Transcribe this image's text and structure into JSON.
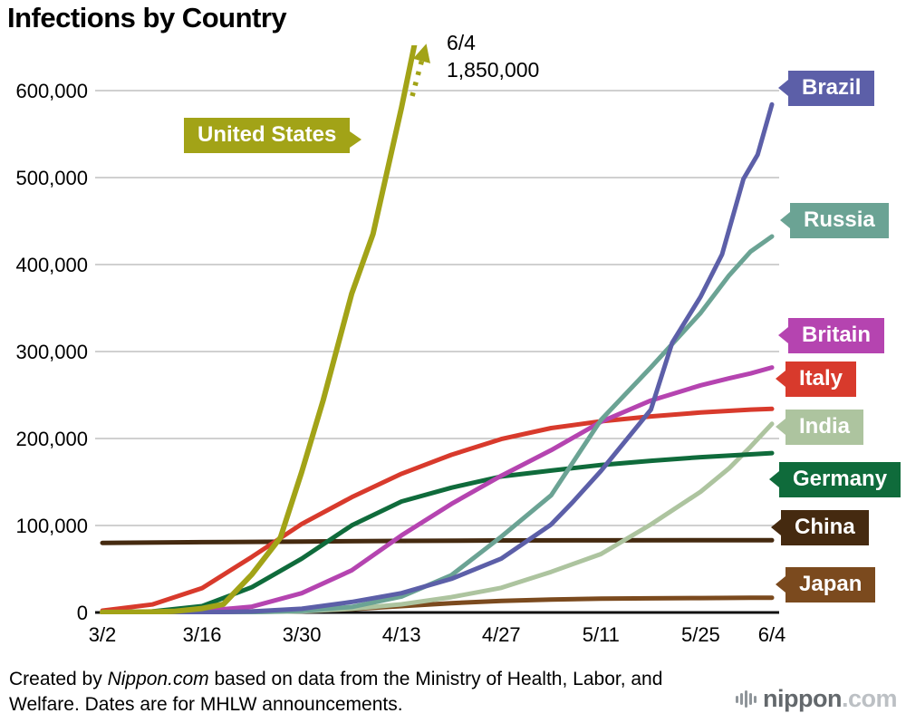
{
  "title": "Infections by Country",
  "annotation": {
    "date": "6/4",
    "value": "1,850,000"
  },
  "footer": {
    "prefix": "Created by ",
    "brand": "Nippon.com",
    "suffix": " based on data from the Ministry of Health, Labor, and Welfare. Dates are for MHLW announcements."
  },
  "logo": {
    "name": "nippon",
    "tld": ".com"
  },
  "chart_data": {
    "type": "line",
    "title": "Infections by Country",
    "x_axis": {
      "max_day": 94,
      "ticks": [
        {
          "label": "3/2",
          "day": 0
        },
        {
          "label": "3/16",
          "day": 14
        },
        {
          "label": "3/30",
          "day": 28
        },
        {
          "label": "4/13",
          "day": 42
        },
        {
          "label": "4/27",
          "day": 56
        },
        {
          "label": "5/11",
          "day": 70
        },
        {
          "label": "5/25",
          "day": 84
        },
        {
          "label": "6/4",
          "day": 94
        }
      ]
    },
    "y_axis": {
      "max": 600000,
      "ticks": [
        {
          "value": 0,
          "label": "0"
        },
        {
          "value": 100000,
          "label": "100,000"
        },
        {
          "value": 200000,
          "label": "200,000"
        },
        {
          "value": 300000,
          "label": "300,000"
        },
        {
          "value": 400000,
          "label": "400,000"
        },
        {
          "value": 500000,
          "label": "500,000"
        },
        {
          "value": 600000,
          "label": "600,000"
        }
      ]
    },
    "series": [
      {
        "name": "United States",
        "color": "#a2a317",
        "width": 6,
        "off_chart_end": {
          "date": "6/4",
          "value": 1850000
        },
        "points": [
          [
            0,
            100
          ],
          [
            4,
            220
          ],
          [
            7,
            605
          ],
          [
            10,
            1300
          ],
          [
            14,
            4632
          ],
          [
            17,
            9500
          ],
          [
            21,
            43847
          ],
          [
            25,
            86000
          ],
          [
            28,
            161807
          ],
          [
            31,
            244000
          ],
          [
            35,
            366614
          ],
          [
            38,
            435000
          ],
          [
            42,
            580619
          ],
          [
            44,
            660000
          ]
        ]
      },
      {
        "name": "Brazil",
        "color": "#5c5fa8",
        "width": 5,
        "points": [
          [
            0,
            2
          ],
          [
            14,
            121
          ],
          [
            21,
            1128
          ],
          [
            28,
            4256
          ],
          [
            35,
            12056
          ],
          [
            42,
            22169
          ],
          [
            49,
            38654
          ],
          [
            56,
            61888
          ],
          [
            63,
            101147
          ],
          [
            66,
            126611
          ],
          [
            70,
            162699
          ],
          [
            74,
            202918
          ],
          [
            77,
            233142
          ],
          [
            80,
            310087
          ],
          [
            84,
            363211
          ],
          [
            87,
            411821
          ],
          [
            90,
            498440
          ],
          [
            92,
            526447
          ],
          [
            94,
            584016
          ]
        ]
      },
      {
        "name": "Russia",
        "color": "#6ba394",
        "width": 5,
        "points": [
          [
            0,
            3
          ],
          [
            14,
            93
          ],
          [
            21,
            438
          ],
          [
            28,
            1836
          ],
          [
            35,
            6343
          ],
          [
            42,
            18328
          ],
          [
            49,
            42853
          ],
          [
            56,
            87147
          ],
          [
            63,
            134687
          ],
          [
            70,
            221344
          ],
          [
            77,
            281752
          ],
          [
            84,
            344481
          ],
          [
            88,
            387623
          ],
          [
            91,
            414878
          ],
          [
            94,
            432277
          ]
        ]
      },
      {
        "name": "Britain",
        "color": "#b544b0",
        "width": 5,
        "points": [
          [
            0,
            36
          ],
          [
            14,
            1543
          ],
          [
            21,
            6650
          ],
          [
            28,
            22141
          ],
          [
            35,
            48436
          ],
          [
            42,
            88621
          ],
          [
            49,
            124743
          ],
          [
            56,
            157149
          ],
          [
            63,
            186599
          ],
          [
            70,
            219183
          ],
          [
            77,
            243695
          ],
          [
            84,
            261184
          ],
          [
            88,
            269127
          ],
          [
            91,
            274762
          ],
          [
            94,
            281661
          ]
        ]
      },
      {
        "name": "Italy",
        "color": "#d83a2c",
        "width": 5,
        "points": [
          [
            0,
            2036
          ],
          [
            7,
            9172
          ],
          [
            14,
            27980
          ],
          [
            21,
            63927
          ],
          [
            28,
            101739
          ],
          [
            35,
            132547
          ],
          [
            42,
            159516
          ],
          [
            49,
            181228
          ],
          [
            56,
            199414
          ],
          [
            63,
            211938
          ],
          [
            70,
            219814
          ],
          [
            77,
            225435
          ],
          [
            84,
            229858
          ],
          [
            91,
            233197
          ],
          [
            94,
            234013
          ]
        ]
      },
      {
        "name": "India",
        "color": "#adc49f",
        "width": 5,
        "points": [
          [
            0,
            5
          ],
          [
            14,
            114
          ],
          [
            21,
            433
          ],
          [
            28,
            1251
          ],
          [
            35,
            4289
          ],
          [
            42,
            9352
          ],
          [
            49,
            17615
          ],
          [
            56,
            28380
          ],
          [
            63,
            46711
          ],
          [
            70,
            67152
          ],
          [
            77,
            101139
          ],
          [
            84,
            138845
          ],
          [
            88,
            165799
          ],
          [
            91,
            190535
          ],
          [
            94,
            216919
          ]
        ]
      },
      {
        "name": "Germany",
        "color": "#0f6b3b",
        "width": 5,
        "points": [
          [
            0,
            150
          ],
          [
            7,
            1112
          ],
          [
            14,
            7272
          ],
          [
            21,
            29056
          ],
          [
            28,
            61913
          ],
          [
            35,
            100123
          ],
          [
            42,
            127584
          ],
          [
            49,
            143457
          ],
          [
            56,
            156337
          ],
          [
            63,
            163175
          ],
          [
            70,
            169575
          ],
          [
            77,
            174355
          ],
          [
            84,
            178570
          ],
          [
            91,
            181815
          ],
          [
            94,
            183271
          ]
        ]
      },
      {
        "name": "China",
        "color": "#452a10",
        "width": 5,
        "points": [
          [
            0,
            80026
          ],
          [
            14,
            80881
          ],
          [
            28,
            81518
          ],
          [
            42,
            82249
          ],
          [
            56,
            82830
          ],
          [
            70,
            82918
          ],
          [
            84,
            82992
          ],
          [
            94,
            83022
          ]
        ]
      },
      {
        "name": "Japan",
        "color": "#7b4a1e",
        "width": 5,
        "points": [
          [
            0,
            254
          ],
          [
            7,
            488
          ],
          [
            14,
            814
          ],
          [
            21,
            1128
          ],
          [
            28,
            1953
          ],
          [
            35,
            3906
          ],
          [
            42,
            7255
          ],
          [
            49,
            10751
          ],
          [
            56,
            13385
          ],
          [
            63,
            14877
          ],
          [
            70,
            15874
          ],
          [
            77,
            16285
          ],
          [
            84,
            16581
          ],
          [
            91,
            16851
          ],
          [
            94,
            17018
          ]
        ]
      }
    ]
  }
}
